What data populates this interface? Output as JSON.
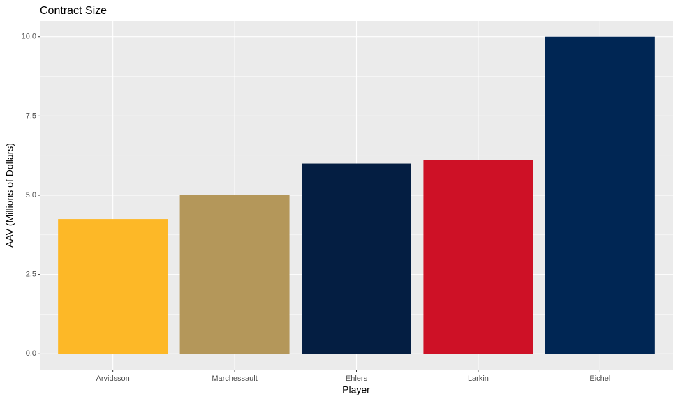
{
  "chart_data": {
    "type": "bar",
    "title": "Contract Size",
    "x_label": "Player",
    "y_label": "AAV (Millions of Dollars)",
    "categories": [
      "Arvidsson",
      "Marchessault",
      "Ehlers",
      "Larkin",
      "Eichel"
    ],
    "values": [
      4.25,
      5.0,
      6.0,
      6.1,
      10.0
    ],
    "colors": [
      "#FDB827",
      "#B4975A",
      "#041E42",
      "#CE1126",
      "#002654"
    ],
    "ylim": [
      -0.5,
      10.5
    ],
    "yticks": [
      {
        "value": 0,
        "label": "0.0"
      },
      2.5,
      {
        "value": 5,
        "label": "5.0"
      },
      7.5,
      {
        "value": 10,
        "label": "10.0"
      }
    ],
    "grid": true
  }
}
